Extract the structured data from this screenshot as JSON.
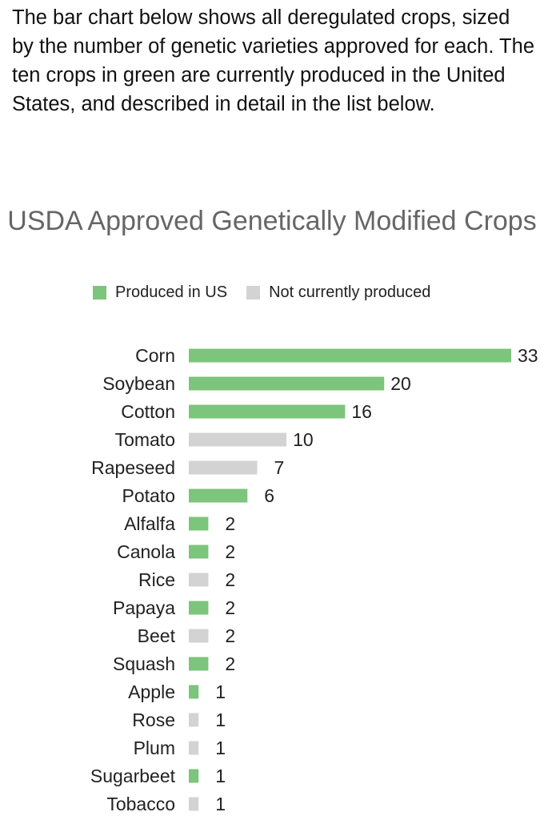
{
  "intro": {
    "text": "The bar chart below shows all deregulated crops, sized by the number of genetic varieties approved for each. The ten crops in green are currently produced in the United States, and described in detail in the list below."
  },
  "chart_data": {
    "type": "bar",
    "orientation": "horizontal",
    "title": "USDA Approved Genetically Modified Crops",
    "xlabel": "",
    "ylabel": "",
    "grid": false,
    "legend_position": "top",
    "legend": [
      {
        "label": "Produced in US",
        "color": "#7dc47c"
      },
      {
        "label": "Not currently produced",
        "color": "#d3d3d3"
      }
    ],
    "categories": [
      "Corn",
      "Soybean",
      "Cotton",
      "Tomato",
      "Rapeseed",
      "Potato",
      "Alfalfa",
      "Canola",
      "Rice",
      "Papaya",
      "Beet",
      "Squash",
      "Apple",
      "Rose",
      "Plum",
      "Sugarbeet",
      "Tobacco"
    ],
    "values": [
      33,
      20,
      16,
      10,
      7,
      6,
      2,
      2,
      2,
      2,
      2,
      2,
      1,
      1,
      1,
      1,
      1
    ],
    "produced_in_us": [
      true,
      true,
      true,
      false,
      false,
      true,
      true,
      true,
      false,
      true,
      false,
      true,
      true,
      false,
      false,
      true,
      false
    ],
    "xlim": [
      0,
      33
    ]
  }
}
